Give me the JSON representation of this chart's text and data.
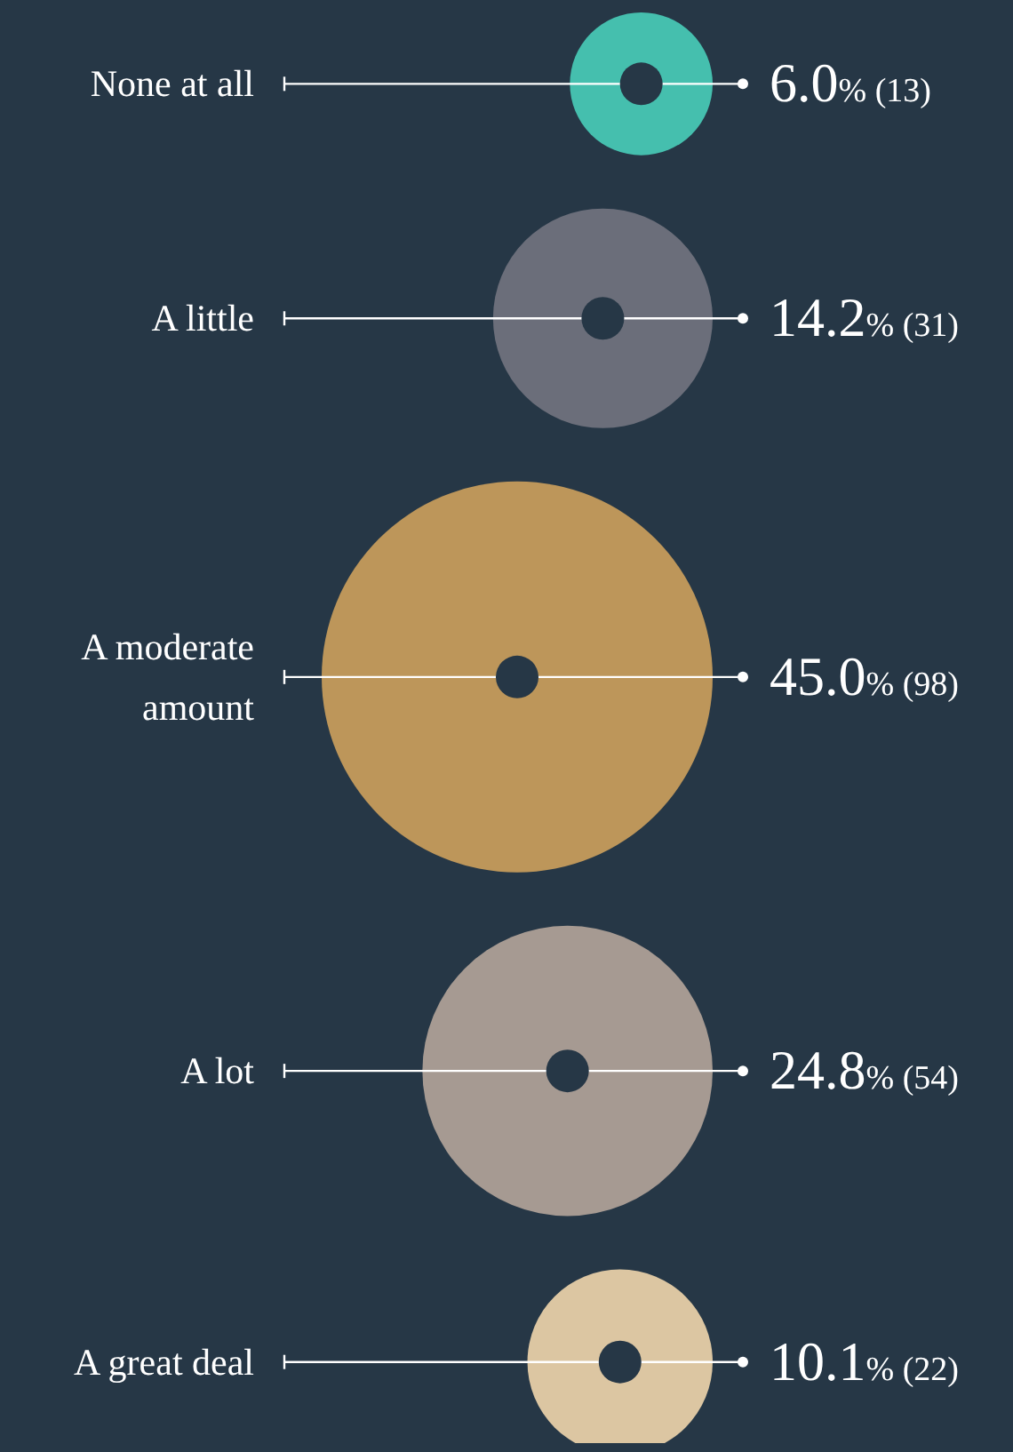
{
  "chart_data": {
    "type": "other",
    "categories": [
      "None at all",
      "A little",
      "A moderate amount",
      "A lot",
      "A great deal"
    ],
    "values": [
      6.0,
      14.2,
      45.0,
      24.8,
      10.1
    ],
    "value_labels": [
      "6.0% (13)",
      "14.2% (31)",
      "45.0% (98)",
      "24.8% (54)",
      "10.1% (22)"
    ],
    "colors": [
      "#45bfae",
      "#6b6e7a",
      "#bd965a",
      "#a69a92",
      "#dcc6a2"
    ]
  }
}
